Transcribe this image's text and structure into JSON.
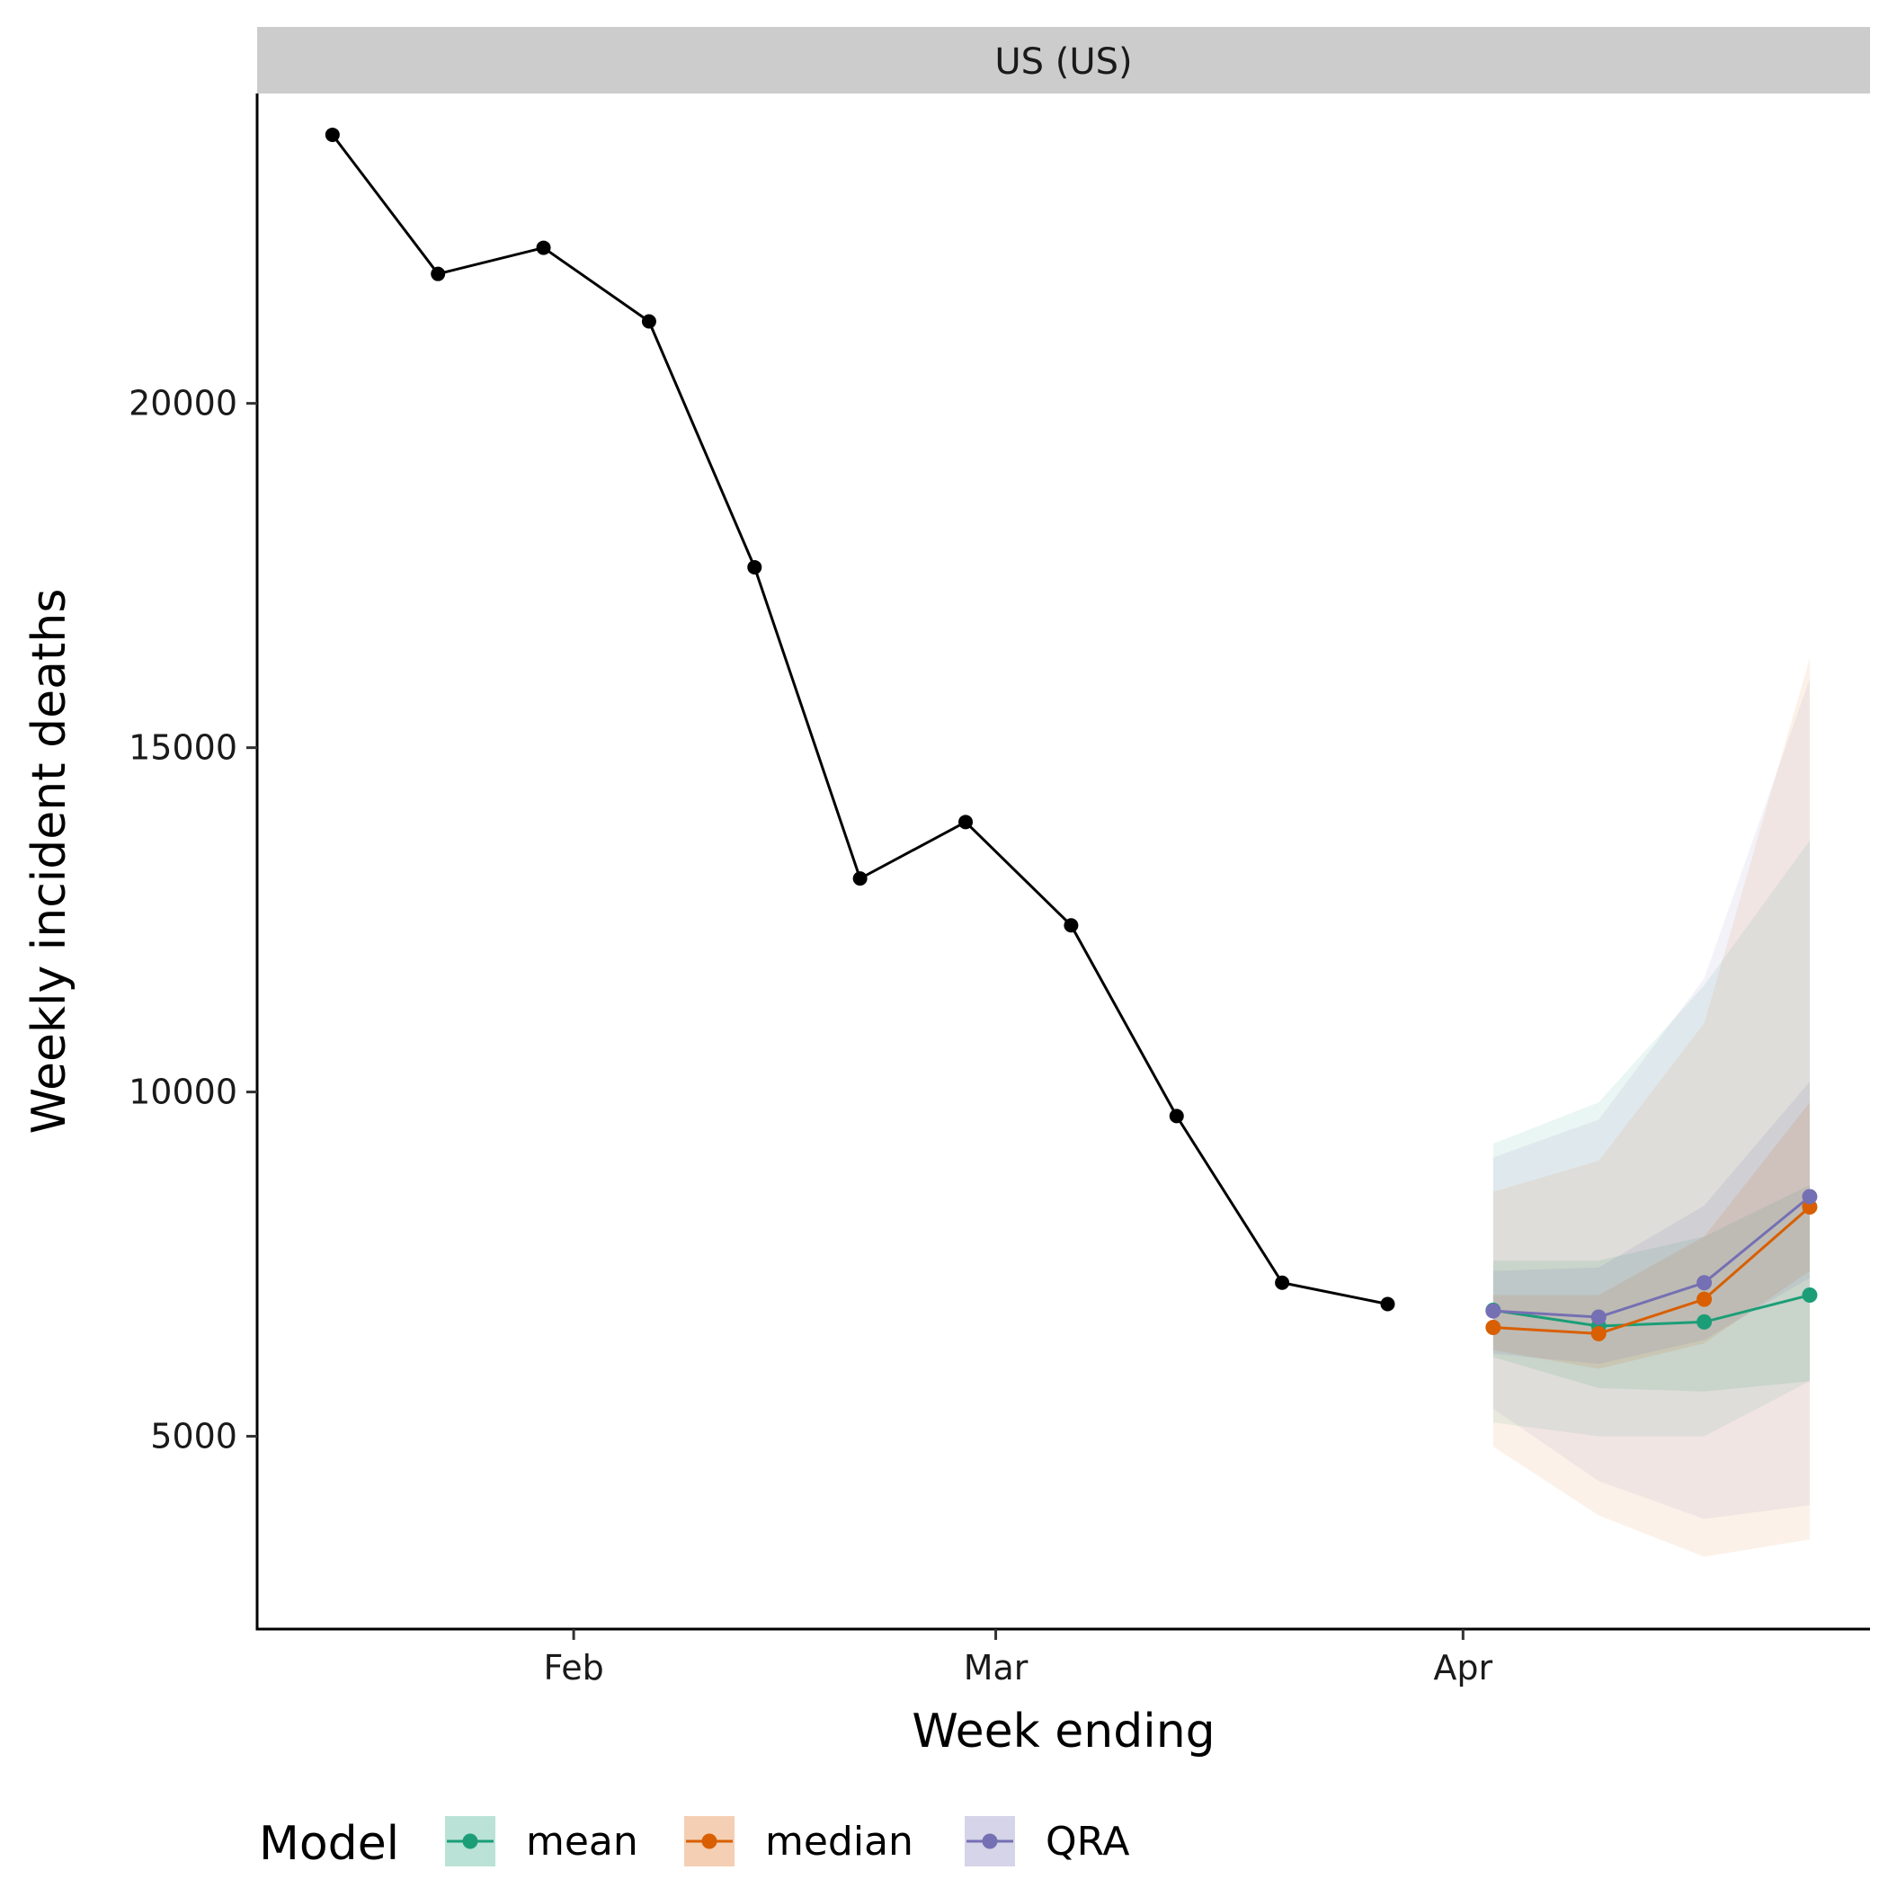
{
  "chart_data": {
    "type": "line",
    "facet_label": "US (US)",
    "xlabel": "Week ending",
    "ylabel": "Weekly incident deaths",
    "x_ticks": [
      {
        "date": "2021-02-01",
        "label": "Feb"
      },
      {
        "date": "2021-03-01",
        "label": "Mar"
      },
      {
        "date": "2021-04-01",
        "label": "Apr"
      }
    ],
    "xlim": [
      "2021-01-11",
      "2021-04-28"
    ],
    "ylim": [
      2200,
      24500
    ],
    "y_ticks": [
      5000,
      10000,
      15000,
      20000
    ],
    "grid": false,
    "legend": {
      "title": "Model",
      "position": "bottom"
    },
    "observed": {
      "color": "#000000",
      "x": [
        "2021-01-16",
        "2021-01-23",
        "2021-01-30",
        "2021-02-06",
        "2021-02-13",
        "2021-02-20",
        "2021-02-27",
        "2021-03-06",
        "2021-03-13",
        "2021-03-20",
        "2021-03-27"
      ],
      "y": [
        23900,
        21880,
        22260,
        21190,
        17620,
        13100,
        13920,
        12420,
        9650,
        7230,
        6920
      ]
    },
    "forecast_x": [
      "2021-04-03",
      "2021-04-10",
      "2021-04-17",
      "2021-04-24"
    ],
    "series": [
      {
        "name": "mean",
        "color": "#1b9e77",
        "values": [
          6830,
          6600,
          6660,
          7050
        ],
        "intervals": [
          {
            "lower": [
              6150,
              5700,
              5650,
              5800
            ],
            "upper": [
              7550,
              7550,
              7900,
              8650
            ]
          },
          {
            "lower": [
              5200,
              5000,
              5000,
              5800
            ],
            "upper": [
              9250,
              9850,
              11550,
              13650
            ]
          }
        ]
      },
      {
        "name": "median",
        "color": "#d95f02",
        "values": [
          6580,
          6490,
          6990,
          8330
        ],
        "intervals": [
          {
            "lower": [
              6250,
              5980,
              6350,
              7400
            ],
            "upper": [
              7050,
              7050,
              7900,
              9850
            ]
          },
          {
            "lower": [
              4850,
              3850,
              3250,
              3500
            ],
            "upper": [
              8550,
              9000,
              11000,
              16300
            ]
          }
        ]
      },
      {
        "name": "QRA",
        "color": "#7570b3",
        "values": [
          6820,
          6730,
          7230,
          8480
        ],
        "intervals": [
          {
            "lower": [
              6200,
              6050,
              6400,
              7300
            ],
            "upper": [
              7400,
              7450,
              8350,
              10150
            ]
          },
          {
            "lower": [
              5400,
              4350,
              3800,
              4000
            ],
            "upper": [
              9050,
              9600,
              11650,
              16000
            ]
          }
        ]
      }
    ]
  }
}
